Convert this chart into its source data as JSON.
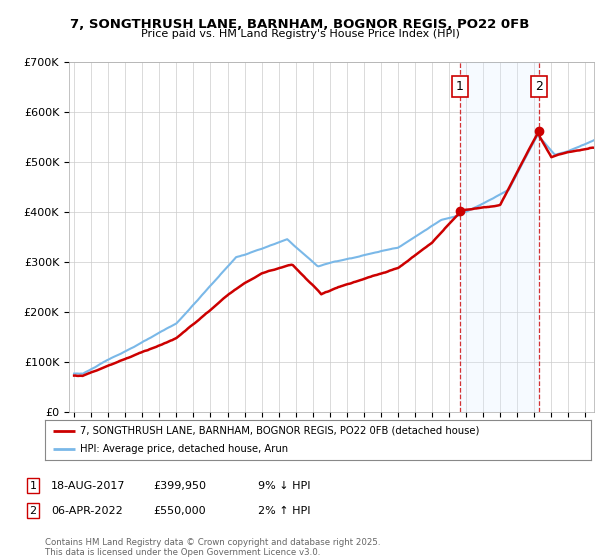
{
  "title_line1": "7, SONGTHRUSH LANE, BARNHAM, BOGNOR REGIS, PO22 0FB",
  "title_line2": "Price paid vs. HM Land Registry's House Price Index (HPI)",
  "hpi_color": "#7ab8e8",
  "price_color": "#cc0000",
  "marker1_year": 2017.63,
  "marker2_year": 2022.27,
  "marker1_price": 399950,
  "marker2_price": 550000,
  "legend_line1": "7, SONGTHRUSH LANE, BARNHAM, BOGNOR REGIS, PO22 0FB (detached house)",
  "legend_line2": "HPI: Average price, detached house, Arun",
  "table_row1": [
    "1",
    "18-AUG-2017",
    "£399,950",
    "9% ↓ HPI"
  ],
  "table_row2": [
    "2",
    "06-APR-2022",
    "£550,000",
    "2% ↑ HPI"
  ],
  "footer": "Contains HM Land Registry data © Crown copyright and database right 2025.\nThis data is licensed under the Open Government Licence v3.0.",
  "plot_bg_color": "#ffffff",
  "shade_color": "#ddeeff",
  "ylim_min": 0,
  "ylim_max": 700000,
  "xlim_min": 1994.7,
  "xlim_max": 2025.5
}
